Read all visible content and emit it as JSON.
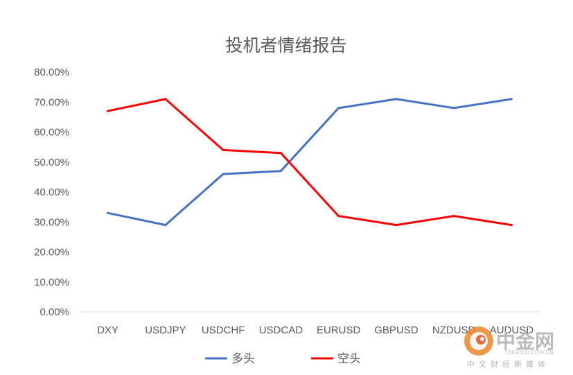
{
  "chart_data": {
    "type": "line",
    "title": "投机者情绪报告",
    "categories": [
      "DXY",
      "USDJPY",
      "USDCHF",
      "USDCAD",
      "EURUSD",
      "GBPUSD",
      "NZDUSD",
      "AUDUSD"
    ],
    "series": [
      {
        "name": "多头",
        "color": "#4472c4",
        "values": [
          33,
          29,
          46,
          47,
          68,
          71,
          68,
          71
        ]
      },
      {
        "name": "空头",
        "color": "#ff0000",
        "values": [
          67,
          71,
          54,
          53,
          32,
          29,
          32,
          29
        ]
      }
    ],
    "yticks": [
      "0.00%",
      "10.00%",
      "20.00%",
      "30.00%",
      "40.00%",
      "50.00%",
      "60.00%",
      "70.00%",
      "80.00%"
    ],
    "ylim": [
      0,
      80
    ],
    "legend_position": "bottom",
    "grid": false
  },
  "watermark": {
    "brand": "中金网",
    "domain": "CNGOLD.COM.CN",
    "tagline": "中文财经新媒体",
    "logo_icon": "swirl-logo-icon"
  }
}
